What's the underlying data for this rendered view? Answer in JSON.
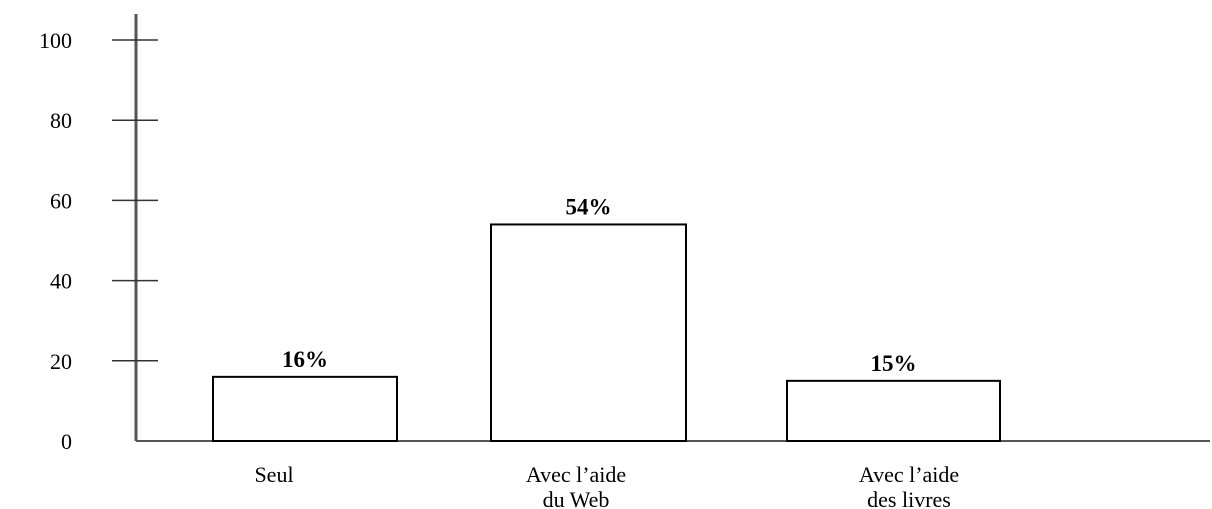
{
  "chart_data": {
    "type": "bar",
    "categories": [
      [
        "Seul"
      ],
      [
        "Avec l’aide",
        "du Web"
      ],
      [
        "Avec l’aide",
        "des livres"
      ]
    ],
    "values": [
      16,
      54,
      15
    ],
    "data_labels": [
      "16%",
      "54%",
      "15%"
    ],
    "yticks": [
      0,
      20,
      40,
      60,
      80,
      100
    ],
    "ylim": [
      0,
      100
    ],
    "grid": false,
    "bar_fill": "#ffffff",
    "bar_stroke": "#000000",
    "axis_color": "#555555"
  }
}
